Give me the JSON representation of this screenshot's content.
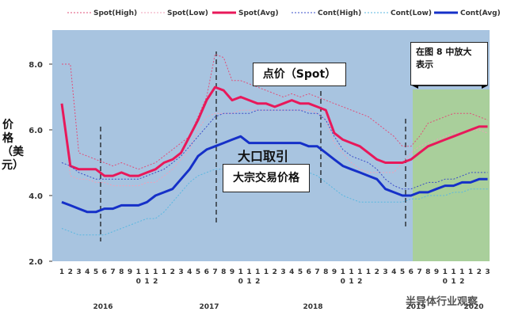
{
  "chart_data": {
    "type": "line",
    "ylabel": "价格（美元）",
    "ylim": [
      2.0,
      8.5
    ],
    "yticks": [
      "2.0",
      "4.0",
      "6.0",
      "8.0"
    ],
    "x_month_labels": [
      "1",
      "2",
      "3",
      "4",
      "5",
      "6",
      "7",
      "8",
      "9",
      "10",
      "11",
      "12",
      "1",
      "2",
      "3",
      "4",
      "5",
      "6",
      "7",
      "8",
      "9",
      "10",
      "11",
      "12",
      "1",
      "2",
      "3",
      "4",
      "5",
      "6",
      "7",
      "8",
      "9",
      "10",
      "11",
      "12",
      "1",
      "2",
      "3",
      "4",
      "5",
      "6",
      "7",
      "8",
      "9",
      "10",
      "11",
      "12",
      "1",
      "2",
      "3"
    ],
    "years": [
      "2016",
      "2017",
      "2018",
      "2019",
      "2020"
    ],
    "legend_position": "top",
    "series": [
      {
        "name": "Spot(High)",
        "color": "#e0507a",
        "style": "dotted",
        "width": 1,
        "values": [
          8.0,
          8.0,
          5.3,
          5.2,
          5.1,
          5.0,
          4.9,
          5.0,
          4.9,
          4.8,
          4.9,
          5.0,
          5.2,
          5.4,
          5.6,
          5.8,
          6.4,
          7.0,
          8.3,
          8.2,
          7.5,
          7.5,
          7.4,
          7.3,
          7.2,
          7.1,
          7.0,
          7.1,
          7.0,
          7.1,
          7.0,
          6.9,
          6.8,
          6.7,
          6.6,
          6.5,
          6.4,
          6.2,
          6.0,
          5.8,
          5.5,
          5.5,
          5.8,
          6.2,
          6.3,
          6.4,
          6.5,
          6.5,
          6.5,
          6.4,
          6.3
        ]
      },
      {
        "name": "Spot(Low)",
        "color": "#f0a0b8",
        "style": "dotted",
        "width": 1,
        "values": [
          6.7,
          4.6,
          4.5,
          4.5,
          4.4,
          4.4,
          4.3,
          4.3,
          4.3,
          4.3,
          4.4,
          4.4,
          4.6,
          4.8,
          5.1,
          5.4,
          6.0,
          6.4,
          6.5,
          6.5,
          6.5,
          6.6,
          6.6,
          6.6,
          6.6,
          6.6,
          6.6,
          6.6,
          6.6,
          6.6,
          6.5,
          6.3,
          5.6,
          5.3,
          5.0,
          4.8,
          4.7,
          4.7,
          4.7,
          4.7,
          5.0,
          5.3,
          5.5,
          5.6,
          5.7,
          5.8,
          5.9,
          5.9,
          6.0,
          6.0,
          5.9
        ]
      },
      {
        "name": "Spot(Avg)",
        "color": "#e8185a",
        "style": "solid",
        "width": 3,
        "values": [
          6.8,
          4.9,
          4.8,
          4.8,
          4.8,
          4.6,
          4.6,
          4.7,
          4.6,
          4.6,
          4.7,
          4.8,
          5.0,
          5.1,
          5.3,
          5.8,
          6.3,
          6.9,
          7.3,
          7.2,
          6.9,
          7.0,
          6.9,
          6.8,
          6.8,
          6.7,
          6.8,
          6.9,
          6.8,
          6.8,
          6.7,
          6.6,
          5.9,
          5.7,
          5.6,
          5.5,
          5.3,
          5.1,
          5.0,
          5.0,
          5.0,
          5.1,
          5.3,
          5.5,
          5.6,
          5.7,
          5.8,
          5.9,
          6.0,
          6.1,
          6.1
        ]
      },
      {
        "name": "Cont(High)",
        "color": "#3a4cc8",
        "style": "dotted",
        "width": 1,
        "values": [
          5.0,
          4.9,
          4.7,
          4.6,
          4.5,
          4.5,
          4.5,
          4.5,
          4.5,
          4.5,
          4.6,
          4.7,
          4.8,
          5.0,
          5.2,
          5.5,
          5.8,
          6.1,
          6.4,
          6.5,
          6.5,
          6.5,
          6.5,
          6.6,
          6.6,
          6.6,
          6.6,
          6.6,
          6.6,
          6.5,
          6.5,
          6.3,
          5.8,
          5.4,
          5.2,
          5.1,
          5.0,
          4.8,
          4.5,
          4.3,
          4.2,
          4.2,
          4.3,
          4.4,
          4.4,
          4.5,
          4.5,
          4.6,
          4.7,
          4.7,
          4.7
        ]
      },
      {
        "name": "Cont(Low)",
        "color": "#5ab7e0",
        "style": "dotted",
        "width": 1,
        "values": [
          3.0,
          2.9,
          2.8,
          2.8,
          2.8,
          2.8,
          2.9,
          3.0,
          3.1,
          3.2,
          3.3,
          3.3,
          3.5,
          3.8,
          4.1,
          4.4,
          4.6,
          4.7,
          4.8,
          4.8,
          4.8,
          4.8,
          4.8,
          4.8,
          4.8,
          4.8,
          4.8,
          4.8,
          4.8,
          4.7,
          4.6,
          4.4,
          4.2,
          4.0,
          3.9,
          3.8,
          3.8,
          3.8,
          3.8,
          3.8,
          3.8,
          3.9,
          3.9,
          4.0,
          4.0,
          4.0,
          4.1,
          4.1,
          4.2,
          4.2,
          4.2
        ]
      },
      {
        "name": "Cont(Avg)",
        "color": "#1530c8",
        "style": "solid",
        "width": 3,
        "values": [
          3.8,
          3.7,
          3.6,
          3.5,
          3.5,
          3.6,
          3.6,
          3.7,
          3.7,
          3.7,
          3.8,
          4.0,
          4.1,
          4.2,
          4.5,
          4.8,
          5.2,
          5.4,
          5.5,
          5.6,
          5.7,
          5.8,
          5.6,
          5.6,
          5.6,
          5.6,
          5.6,
          5.6,
          5.6,
          5.5,
          5.5,
          5.3,
          5.1,
          4.9,
          4.8,
          4.7,
          4.6,
          4.5,
          4.2,
          4.1,
          4.0,
          4.0,
          4.1,
          4.1,
          4.2,
          4.3,
          4.3,
          4.4,
          4.4,
          4.5,
          4.5
        ]
      }
    ],
    "annotations": {
      "spot_label": "点价（Spot）",
      "contract_label": "大口取引",
      "contract_price_label": "大宗交易价格",
      "zoom_note_line1": "在图 8 中放大",
      "zoom_note_line2": "表示",
      "watermark": "半导体行业观察"
    },
    "colors": {
      "plot_background": "#a8c4e0",
      "highlight_region": "#a9d18e"
    }
  }
}
